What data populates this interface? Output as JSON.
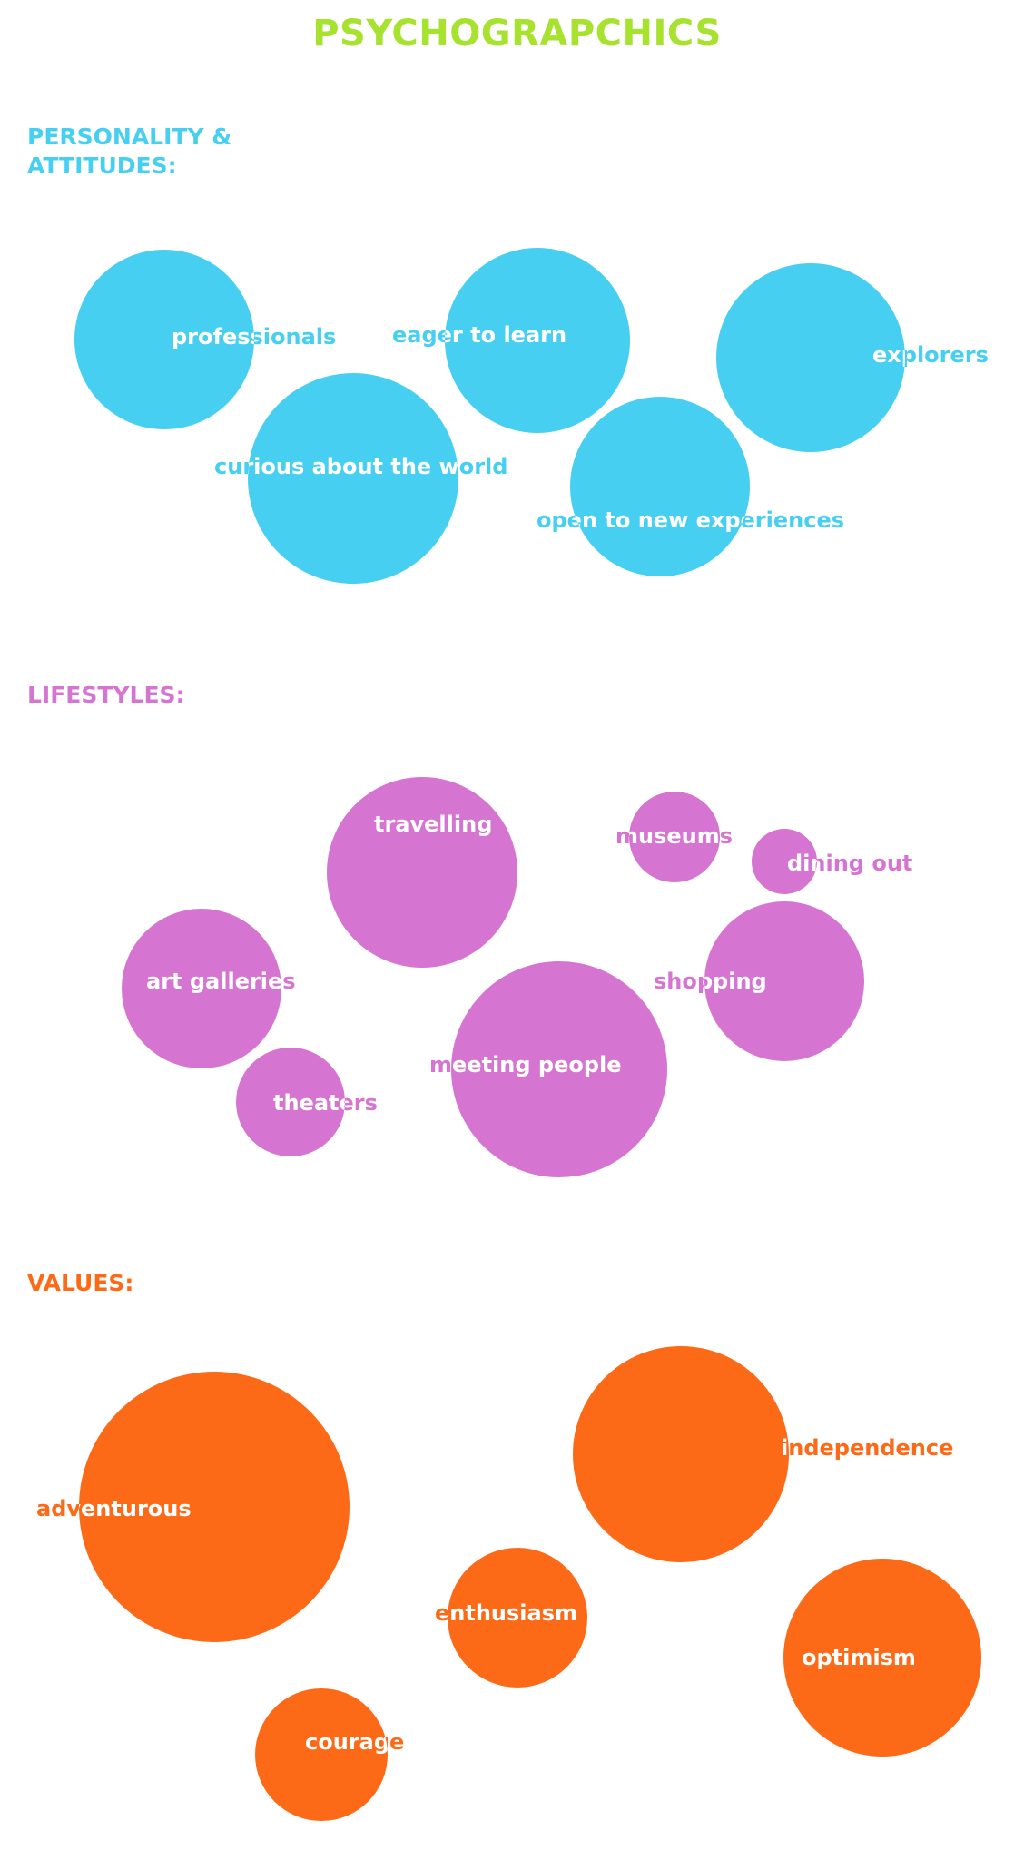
{
  "title": "PSYCHOGRAPCHICS",
  "colors": {
    "title": "#a6e22e",
    "personality": "#47cff2",
    "lifestyles": "#d574d1",
    "values": "#fd6a17",
    "label_inside": "#ffffff"
  },
  "sections": [
    {
      "id": "personality",
      "heading": "PERSONALITY &\nATTITUDES:",
      "color_key": "personality",
      "bubbles": [
        {
          "label": "professionals",
          "relative_size": 0.85
        },
        {
          "label": "eager to learn",
          "relative_size": 0.88
        },
        {
          "label": "explorers",
          "relative_size": 0.9
        },
        {
          "label": "curious about the world",
          "relative_size": 1.0
        },
        {
          "label": "open to new experiences",
          "relative_size": 0.85
        }
      ]
    },
    {
      "id": "lifestyles",
      "heading": "LIFESTYLES:",
      "color_key": "lifestyles",
      "bubbles": [
        {
          "label": "travelling",
          "relative_size": 0.88
        },
        {
          "label": "museums",
          "relative_size": 0.42
        },
        {
          "label": "dining out",
          "relative_size": 0.3
        },
        {
          "label": "art galleries",
          "relative_size": 0.74
        },
        {
          "label": "shopping",
          "relative_size": 0.74
        },
        {
          "label": "meeting people",
          "relative_size": 1.0
        },
        {
          "label": "theaters",
          "relative_size": 0.5
        }
      ]
    },
    {
      "id": "values",
      "heading": "VALUES:",
      "color_key": "values",
      "bubbles": [
        {
          "label": "adventurous",
          "relative_size": 1.0
        },
        {
          "label": "independence",
          "relative_size": 0.8
        },
        {
          "label": "enthusiasm",
          "relative_size": 0.52
        },
        {
          "label": "optimism",
          "relative_size": 0.73
        },
        {
          "label": "courage",
          "relative_size": 0.49
        }
      ]
    }
  ]
}
